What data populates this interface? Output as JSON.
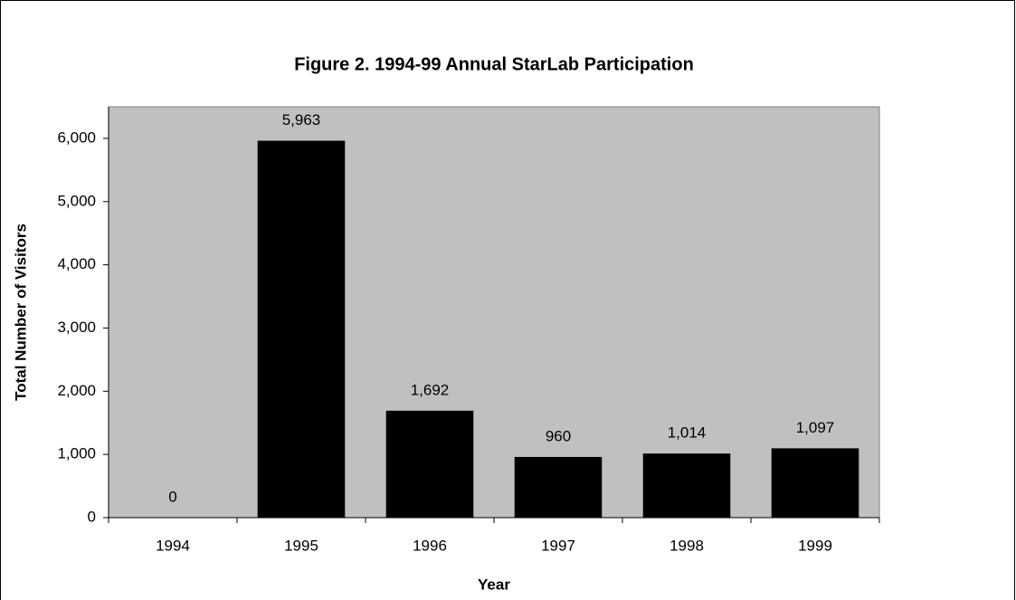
{
  "chart_data": {
    "type": "bar",
    "title": "Figure 2.  1994-99 Annual StarLab Participation",
    "x_label": "Year",
    "y_label": "Total Number of Visitors",
    "categories": [
      "1994",
      "1995",
      "1996",
      "1997",
      "1998",
      "1999"
    ],
    "values": [
      0,
      5963,
      1692,
      960,
      1014,
      1097
    ],
    "value_labels": [
      "0",
      "5,963",
      "1,692",
      "960",
      "1,014",
      "1,097"
    ],
    "color": "#000000",
    "plot_background": "#c0c0c0",
    "ylim": [
      0,
      6500
    ],
    "yticks": [
      0,
      {
        "value": 1000,
        "label": "1,000"
      },
      {
        "value": 2000,
        "label": "2,000"
      },
      {
        "value": 3000,
        "label": "3,000"
      },
      {
        "value": 4000,
        "label": "4,000"
      },
      {
        "value": 5000,
        "label": "5,000"
      },
      {
        "value": 6000,
        "label": "6,000"
      }
    ]
  }
}
